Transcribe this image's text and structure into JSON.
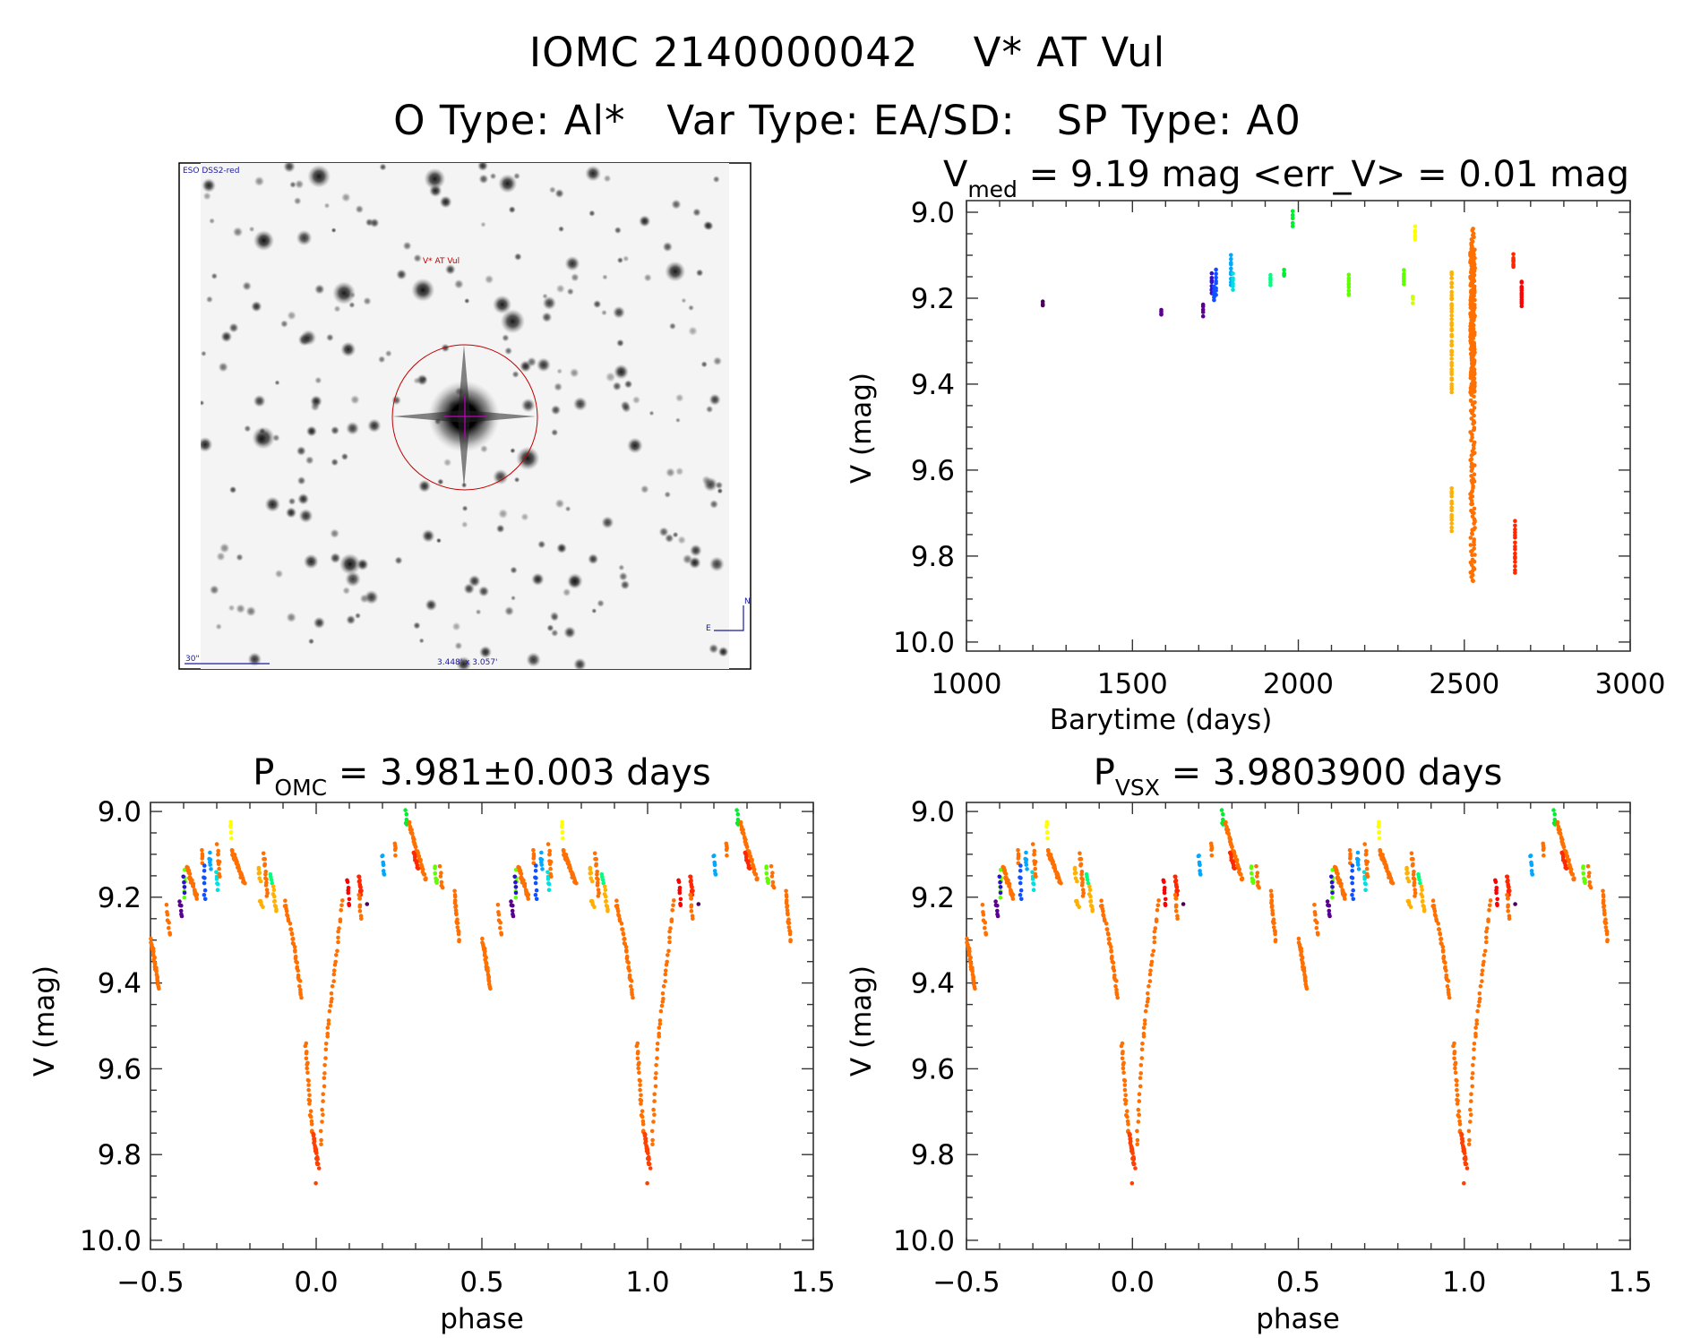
{
  "header": {
    "title": "IOMC 2140000042    V* AT Vul",
    "subtitle": "O Type: Al*   Var Type: EA/SD:   SP Type: A0"
  },
  "image": {
    "survey": "ESO DSS2-red",
    "target": "V* AT Vul",
    "scale": "30\"",
    "fov": "3.448' x 3.057'",
    "north": "N",
    "east": "E"
  },
  "colors": {
    "orange": "#ff7000",
    "darkorange": "#ff4000",
    "amber": "#ffb000",
    "yellow": "#ffff00",
    "lime": "#ccff00",
    "yellowgreen": "#60ff00",
    "green": "#00ee30",
    "springgreen": "#00ff80",
    "cyan": "#00e0e0",
    "skyblue": "#00a8ff",
    "blue": "#1050ff",
    "indigo": "#3010d0",
    "purple": "#5a0090",
    "darkpurple": "#4b0058",
    "red": "#ff0000",
    "redorange": "#ff2800"
  },
  "chart_data": [
    {
      "type": "scatter",
      "id": "timeseries",
      "title_main": "V",
      "title_sub": "med",
      "title_rest": " = 9.19 mag <err_V> = 0.01 mag",
      "xlabel": "Barytime (days)",
      "ylabel": "V (mag)",
      "xlim": [
        1000,
        3000
      ],
      "ylim": [
        10.021,
        8.973
      ],
      "xticks": [
        1000,
        1500,
        2000,
        2500,
        3000
      ],
      "xminor": 100,
      "yticks": [
        9.0,
        9.2,
        9.4,
        9.6,
        9.8,
        10.0
      ],
      "yminor": 0.05,
      "groups": [
        {
          "t": [
            1230,
            1230
          ],
          "mag": [
            9.21,
            9.215
          ],
          "n": 3,
          "color": "darkpurple"
        },
        {
          "t": [
            1587,
            1587
          ],
          "mag": [
            9.225,
            9.24
          ],
          "n": 4,
          "color": "purple"
        },
        {
          "t": [
            1713,
            1713
          ],
          "mag": [
            9.215,
            9.24
          ],
          "n": 5,
          "color": "purple"
        },
        {
          "t": [
            1739,
            1739
          ],
          "mag": [
            9.145,
            9.19
          ],
          "n": 8,
          "color": "indigo"
        },
        {
          "t": [
            1746,
            1746
          ],
          "mag": [
            9.175,
            9.205
          ],
          "n": 6,
          "color": "blue"
        },
        {
          "t": [
            1752,
            1752
          ],
          "mag": [
            9.135,
            9.19
          ],
          "n": 8,
          "color": "blue"
        },
        {
          "t": [
            1797,
            1797
          ],
          "mag": [
            9.1,
            9.17
          ],
          "n": 10,
          "color": "skyblue"
        },
        {
          "t": [
            1803,
            1803
          ],
          "mag": [
            9.145,
            9.18
          ],
          "n": 6,
          "color": "cyan"
        },
        {
          "t": [
            1916,
            1916
          ],
          "mag": [
            9.145,
            9.17
          ],
          "n": 5,
          "color": "springgreen"
        },
        {
          "t": [
            1957,
            1957
          ],
          "mag": [
            9.135,
            9.15
          ],
          "n": 4,
          "color": "green"
        },
        {
          "t": [
            1983,
            1983
          ],
          "mag": [
            9.0,
            9.03
          ],
          "n": 5,
          "color": "green"
        },
        {
          "t": [
            2152,
            2152
          ],
          "mag": [
            9.145,
            9.195
          ],
          "n": 9,
          "color": "yellowgreen"
        },
        {
          "t": [
            2318,
            2318
          ],
          "mag": [
            9.135,
            9.165
          ],
          "n": 6,
          "color": "yellowgreen"
        },
        {
          "t": [
            2345,
            2345
          ],
          "mag": [
            9.195,
            9.21
          ],
          "n": 3,
          "color": "lime"
        },
        {
          "t": [
            2352,
            2352
          ],
          "mag": [
            9.035,
            9.065
          ],
          "n": 6,
          "color": "yellow"
        },
        {
          "t": [
            2462,
            2462
          ],
          "mag": [
            9.14,
            9.42
          ],
          "n": 40,
          "color": "amber"
        },
        {
          "t": [
            2462,
            2462
          ],
          "mag": [
            9.64,
            9.74
          ],
          "n": 14,
          "color": "amber"
        },
        {
          "t": [
            2518,
            2532
          ],
          "mag": [
            9.08,
            9.42
          ],
          "n": 240,
          "color": "orange"
        },
        {
          "t": [
            2520,
            2530
          ],
          "mag": [
            9.04,
            9.1
          ],
          "n": 14,
          "color": "orange"
        },
        {
          "t": [
            2518,
            2532
          ],
          "mag": [
            9.42,
            9.86
          ],
          "n": 90,
          "color": "orange"
        },
        {
          "t": [
            2648,
            2648
          ],
          "mag": [
            9.1,
            9.13
          ],
          "n": 8,
          "color": "redorange"
        },
        {
          "t": [
            2653,
            2653
          ],
          "mag": [
            9.72,
            9.84
          ],
          "n": 16,
          "color": "redorange"
        },
        {
          "t": [
            2673,
            2673
          ],
          "mag": [
            9.16,
            9.22
          ],
          "n": 12,
          "color": "red"
        }
      ]
    },
    {
      "type": "scatter",
      "id": "phase-omc",
      "title_main": "P",
      "title_sub": "OMC",
      "title_rest": " = 3.981±0.003 days",
      "xlabel": "phase",
      "ylabel": "V (mag)",
      "xlim": [
        -0.5,
        1.5
      ],
      "ylim": [
        10.021,
        8.979
      ],
      "xticks": [
        -0.5,
        0.0,
        0.5,
        1.0,
        1.5
      ],
      "xminor": 0.1,
      "yticks": [
        9.0,
        9.2,
        9.4,
        9.6,
        9.8,
        10.0
      ],
      "yminor": 0.05,
      "phase_offset": 0.0
    },
    {
      "type": "scatter",
      "id": "phase-vsx",
      "title_main": "P",
      "title_sub": "VSX",
      "title_rest": " = 3.9803900 days",
      "xlabel": "phase",
      "ylabel": "V (mag)",
      "xlim": [
        -0.5,
        1.5
      ],
      "ylim": [
        10.021,
        8.979
      ],
      "xticks": [
        -0.5,
        0.0,
        0.5,
        1.0,
        1.5
      ],
      "xminor": 0.1,
      "yticks": [
        9.0,
        9.2,
        9.4,
        9.6,
        9.8,
        10.0
      ],
      "yminor": 0.05,
      "phase_offset": 0.0
    }
  ],
  "phase_groups": [
    {
      "p": [
        -0.498,
        -0.475
      ],
      "mag": [
        9.3,
        9.41
      ],
      "n": 30,
      "color": "orange"
    },
    {
      "p": [
        -0.452,
        -0.44
      ],
      "mag": [
        9.22,
        9.29
      ],
      "n": 8,
      "color": "orange"
    },
    {
      "p": [
        -0.412,
        -0.405
      ],
      "mag": [
        9.21,
        9.245
      ],
      "n": 6,
      "color": "purple"
    },
    {
      "p": [
        -0.398,
        -0.396
      ],
      "mag": [
        9.14,
        9.2
      ],
      "n": 6,
      "color": "yellowgreen"
    },
    {
      "p": [
        -0.399,
        -0.397
      ],
      "mag": [
        9.15,
        9.19
      ],
      "n": 4,
      "color": "indigo"
    },
    {
      "p": [
        -0.39,
        -0.36
      ],
      "mag": [
        9.13,
        9.2
      ],
      "n": 30,
      "color": "orange"
    },
    {
      "p": [
        -0.345,
        -0.342
      ],
      "mag": [
        9.09,
        9.12
      ],
      "n": 5,
      "color": "orange"
    },
    {
      "p": [
        -0.338,
        -0.336
      ],
      "mag": [
        9.13,
        9.2
      ],
      "n": 8,
      "color": "blue"
    },
    {
      "p": [
        -0.322,
        -0.318
      ],
      "mag": [
        9.1,
        9.135
      ],
      "n": 6,
      "color": "skyblue"
    },
    {
      "p": [
        -0.3,
        -0.296
      ],
      "mag": [
        9.14,
        9.18
      ],
      "n": 6,
      "color": "cyan"
    },
    {
      "p": [
        -0.298,
        -0.29
      ],
      "mag": [
        9.08,
        9.15
      ],
      "n": 10,
      "color": "orange"
    },
    {
      "p": [
        -0.259,
        -0.256
      ],
      "mag": [
        9.02,
        9.06
      ],
      "n": 6,
      "color": "yellow"
    },
    {
      "p": [
        -0.255,
        -0.215
      ],
      "mag": [
        9.09,
        9.17
      ],
      "n": 35,
      "color": "orange"
    },
    {
      "p": [
        -0.175,
        -0.168
      ],
      "mag": [
        9.13,
        9.16
      ],
      "n": 6,
      "color": "amber"
    },
    {
      "p": [
        -0.168,
        -0.162
      ],
      "mag": [
        9.205,
        9.225
      ],
      "n": 5,
      "color": "amber"
    },
    {
      "p": [
        -0.158,
        -0.148
      ],
      "mag": [
        9.1,
        9.2
      ],
      "n": 14,
      "color": "orange"
    },
    {
      "p": [
        -0.137,
        -0.133
      ],
      "mag": [
        9.15,
        9.17
      ],
      "n": 4,
      "color": "springgreen"
    },
    {
      "p": [
        -0.13,
        -0.12
      ],
      "mag": [
        9.18,
        9.235
      ],
      "n": 10,
      "color": "amber"
    },
    {
      "p": [
        -0.095,
        -0.07
      ],
      "mag": [
        9.21,
        9.3
      ],
      "n": 16,
      "color": "orange"
    },
    {
      "p": [
        -0.07,
        -0.044
      ],
      "mag": [
        9.3,
        9.43
      ],
      "n": 22,
      "color": "orange"
    },
    {
      "p": [
        -0.032,
        -0.013
      ],
      "mag": [
        9.54,
        9.75
      ],
      "n": 24,
      "color": "orange"
    },
    {
      "p": [
        -0.009,
        0.007
      ],
      "mag": [
        9.75,
        9.83
      ],
      "n": 22,
      "color": "darkorange"
    },
    {
      "p": [
        0.0,
        0.0
      ],
      "mag": [
        9.865,
        9.865
      ],
      "n": 1,
      "color": "darkorange"
    },
    {
      "p": [
        0.013,
        0.033
      ],
      "mag": [
        9.78,
        9.52
      ],
      "n": 16,
      "color": "orange"
    },
    {
      "p": [
        0.033,
        0.079
      ],
      "mag": [
        9.52,
        9.21
      ],
      "n": 26,
      "color": "orange"
    },
    {
      "p": [
        0.094,
        0.1
      ],
      "mag": [
        9.16,
        9.22
      ],
      "n": 8,
      "color": "red"
    },
    {
      "p": [
        0.128,
        0.136
      ],
      "mag": [
        9.15,
        9.19
      ],
      "n": 14,
      "color": "redorange"
    },
    {
      "p": [
        0.128,
        0.136
      ],
      "mag": [
        9.19,
        9.25
      ],
      "n": 8,
      "color": "orange"
    },
    {
      "p": [
        0.152,
        0.152
      ],
      "mag": [
        9.212,
        9.212
      ],
      "n": 1,
      "color": "darkpurple"
    },
    {
      "p": [
        0.2,
        0.204
      ],
      "mag": [
        9.1,
        9.15
      ],
      "n": 8,
      "color": "skyblue"
    },
    {
      "p": [
        0.236,
        0.24
      ],
      "mag": [
        9.07,
        9.1
      ],
      "n": 5,
      "color": "orange"
    },
    {
      "p": [
        0.27,
        0.273
      ],
      "mag": [
        9.0,
        9.035
      ],
      "n": 5,
      "color": "green"
    },
    {
      "p": [
        0.28,
        0.33
      ],
      "mag": [
        9.03,
        9.16
      ],
      "n": 40,
      "color": "orange"
    },
    {
      "p": [
        0.296,
        0.306
      ],
      "mag": [
        9.1,
        9.13
      ],
      "n": 10,
      "color": "redorange"
    },
    {
      "p": [
        0.358,
        0.364
      ],
      "mag": [
        9.13,
        9.17
      ],
      "n": 8,
      "color": "yellowgreen"
    },
    {
      "p": [
        0.374,
        0.38
      ],
      "mag": [
        9.13,
        9.18
      ],
      "n": 6,
      "color": "orange"
    },
    {
      "p": [
        0.418,
        0.43
      ],
      "mag": [
        9.19,
        9.3
      ],
      "n": 22,
      "color": "orange"
    }
  ]
}
